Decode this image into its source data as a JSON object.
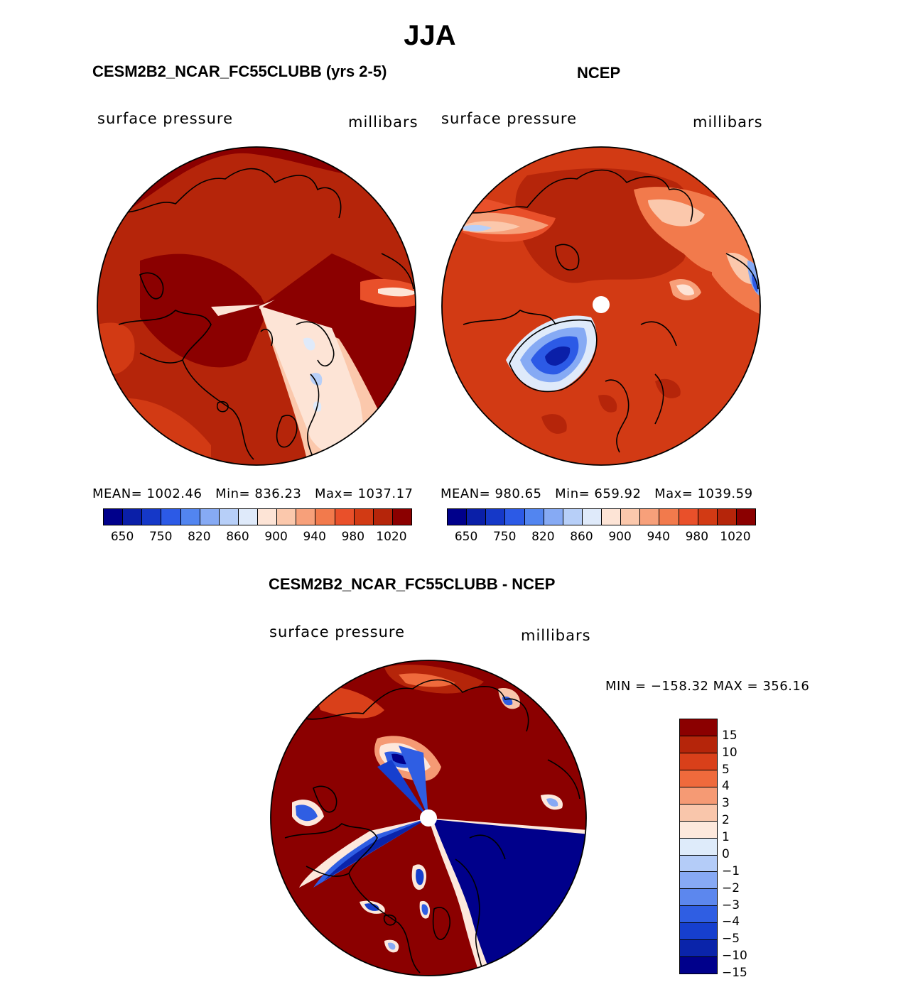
{
  "title": "JJA",
  "panels": [
    {
      "title": "CESM2B2_NCAR_FC55CLUBB (yrs 2-5)",
      "variable": "surface pressure",
      "units": "millibars",
      "stats": {
        "mean_label": "MEAN=",
        "mean": "1002.46",
        "min_label": "Min=",
        "min": "836.23",
        "max_label": "Max=",
        "max": "1037.17"
      }
    },
    {
      "title": "NCEP",
      "variable": "surface pressure",
      "units": "millibars",
      "stats": {
        "mean_label": "MEAN=",
        "mean": "980.65",
        "min_label": "Min=",
        "min": "659.92",
        "max_label": "Max=",
        "max": "1039.59"
      }
    }
  ],
  "colorbar": {
    "colors": [
      "#00008b",
      "#0a1fa8",
      "#1538c8",
      "#2c5ae6",
      "#5285f0",
      "#86aaf4",
      "#b7cff8",
      "#dfeafa",
      "#fde4d6",
      "#fbc8ac",
      "#f7a07a",
      "#f27a4c",
      "#e9502a",
      "#d23a14",
      "#b5250a",
      "#8b0000"
    ],
    "ticks": [
      "650",
      "750",
      "820",
      "860",
      "900",
      "940",
      "980",
      "1020"
    ]
  },
  "diff": {
    "title": "CESM2B2_NCAR_FC55CLUBB - NCEP",
    "variable": "surface pressure",
    "units": "millibars",
    "minmax": "MIN = −158.32  MAX = 356.16",
    "colors": [
      "#8b0000",
      "#b5250a",
      "#d9401a",
      "#ef6a3c",
      "#f59a74",
      "#f9c6ab",
      "#fde8dc",
      "#deebfa",
      "#b4ccf8",
      "#87a9f4",
      "#5c87ee",
      "#2f5ee3",
      "#163fce",
      "#0a24aa",
      "#00008b"
    ],
    "ticks": [
      "15",
      "10",
      "5",
      "4",
      "3",
      "2",
      "1",
      "0",
      "−1",
      "−2",
      "−3",
      "−4",
      "−5",
      "−10",
      "−15"
    ]
  }
}
